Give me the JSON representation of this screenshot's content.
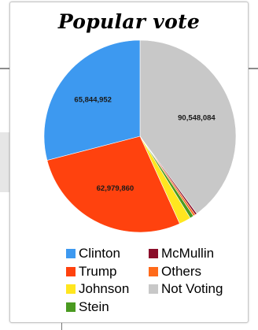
{
  "chart_data": {
    "type": "pie",
    "title": "Popular vote",
    "start_angle_deg": 0,
    "direction": "clockwise",
    "legend_position": "bottom",
    "series": [
      {
        "name": "Not Voting",
        "value": 90548084,
        "label": "90,548,084",
        "color": "#c8c8c8"
      },
      {
        "name": "McMullin",
        "value": 731991,
        "label": "",
        "color": "#8b0d2a"
      },
      {
        "name": "Others",
        "value": 800000,
        "label": "",
        "color": "#ff6a1a"
      },
      {
        "name": "Stein",
        "value": 1457218,
        "label": "",
        "color": "#4a9a20"
      },
      {
        "name": "Johnson",
        "value": 4489341,
        "label": "",
        "color": "#ffe61f"
      },
      {
        "name": "Trump",
        "value": 62979860,
        "label": "62,979,860",
        "color": "#ff420e"
      },
      {
        "name": "Clinton",
        "value": 65844952,
        "label": "65,844,952",
        "color": "#3d99f0"
      }
    ],
    "legend": [
      {
        "name": "Clinton",
        "color": "#3d99f0"
      },
      {
        "name": "McMullin",
        "color": "#8b0d2a"
      },
      {
        "name": "Trump",
        "color": "#ff420e"
      },
      {
        "name": "Others",
        "color": "#ff6a1a"
      },
      {
        "name": "Johnson",
        "color": "#ffe61f"
      },
      {
        "name": "Not Voting",
        "color": "#c8c8c8"
      },
      {
        "name": "Stein",
        "color": "#4a9a20"
      }
    ]
  }
}
